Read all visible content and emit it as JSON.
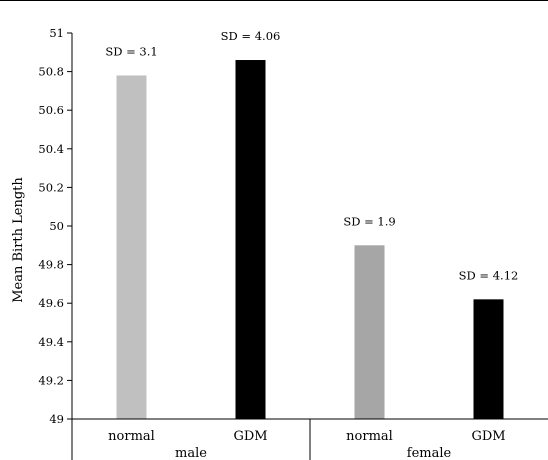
{
  "chart_data": {
    "type": "bar",
    "ylabel": "Mean Birth Length",
    "ylim": [
      49,
      51
    ],
    "yticks": [
      "49",
      "49.2",
      "49.4",
      "49.6",
      "49.8",
      "50",
      "50.2",
      "50.4",
      "50.6",
      "50.8",
      "51"
    ],
    "grid": false,
    "groups": [
      {
        "label": "male",
        "bars": [
          {
            "category": "normal",
            "value": 50.78,
            "sd_label": "SD = 3.1",
            "color": "#c0c0c0"
          },
          {
            "category": "GDM",
            "value": 50.86,
            "sd_label": "SD = 4.06",
            "color": "#000000"
          }
        ]
      },
      {
        "label": "female",
        "bars": [
          {
            "category": "normal",
            "value": 49.9,
            "sd_label": "SD = 1.9",
            "color": "#a6a6a6"
          },
          {
            "category": "GDM",
            "value": 49.62,
            "sd_label": "SD = 4.12",
            "color": "#000000"
          }
        ]
      }
    ]
  }
}
